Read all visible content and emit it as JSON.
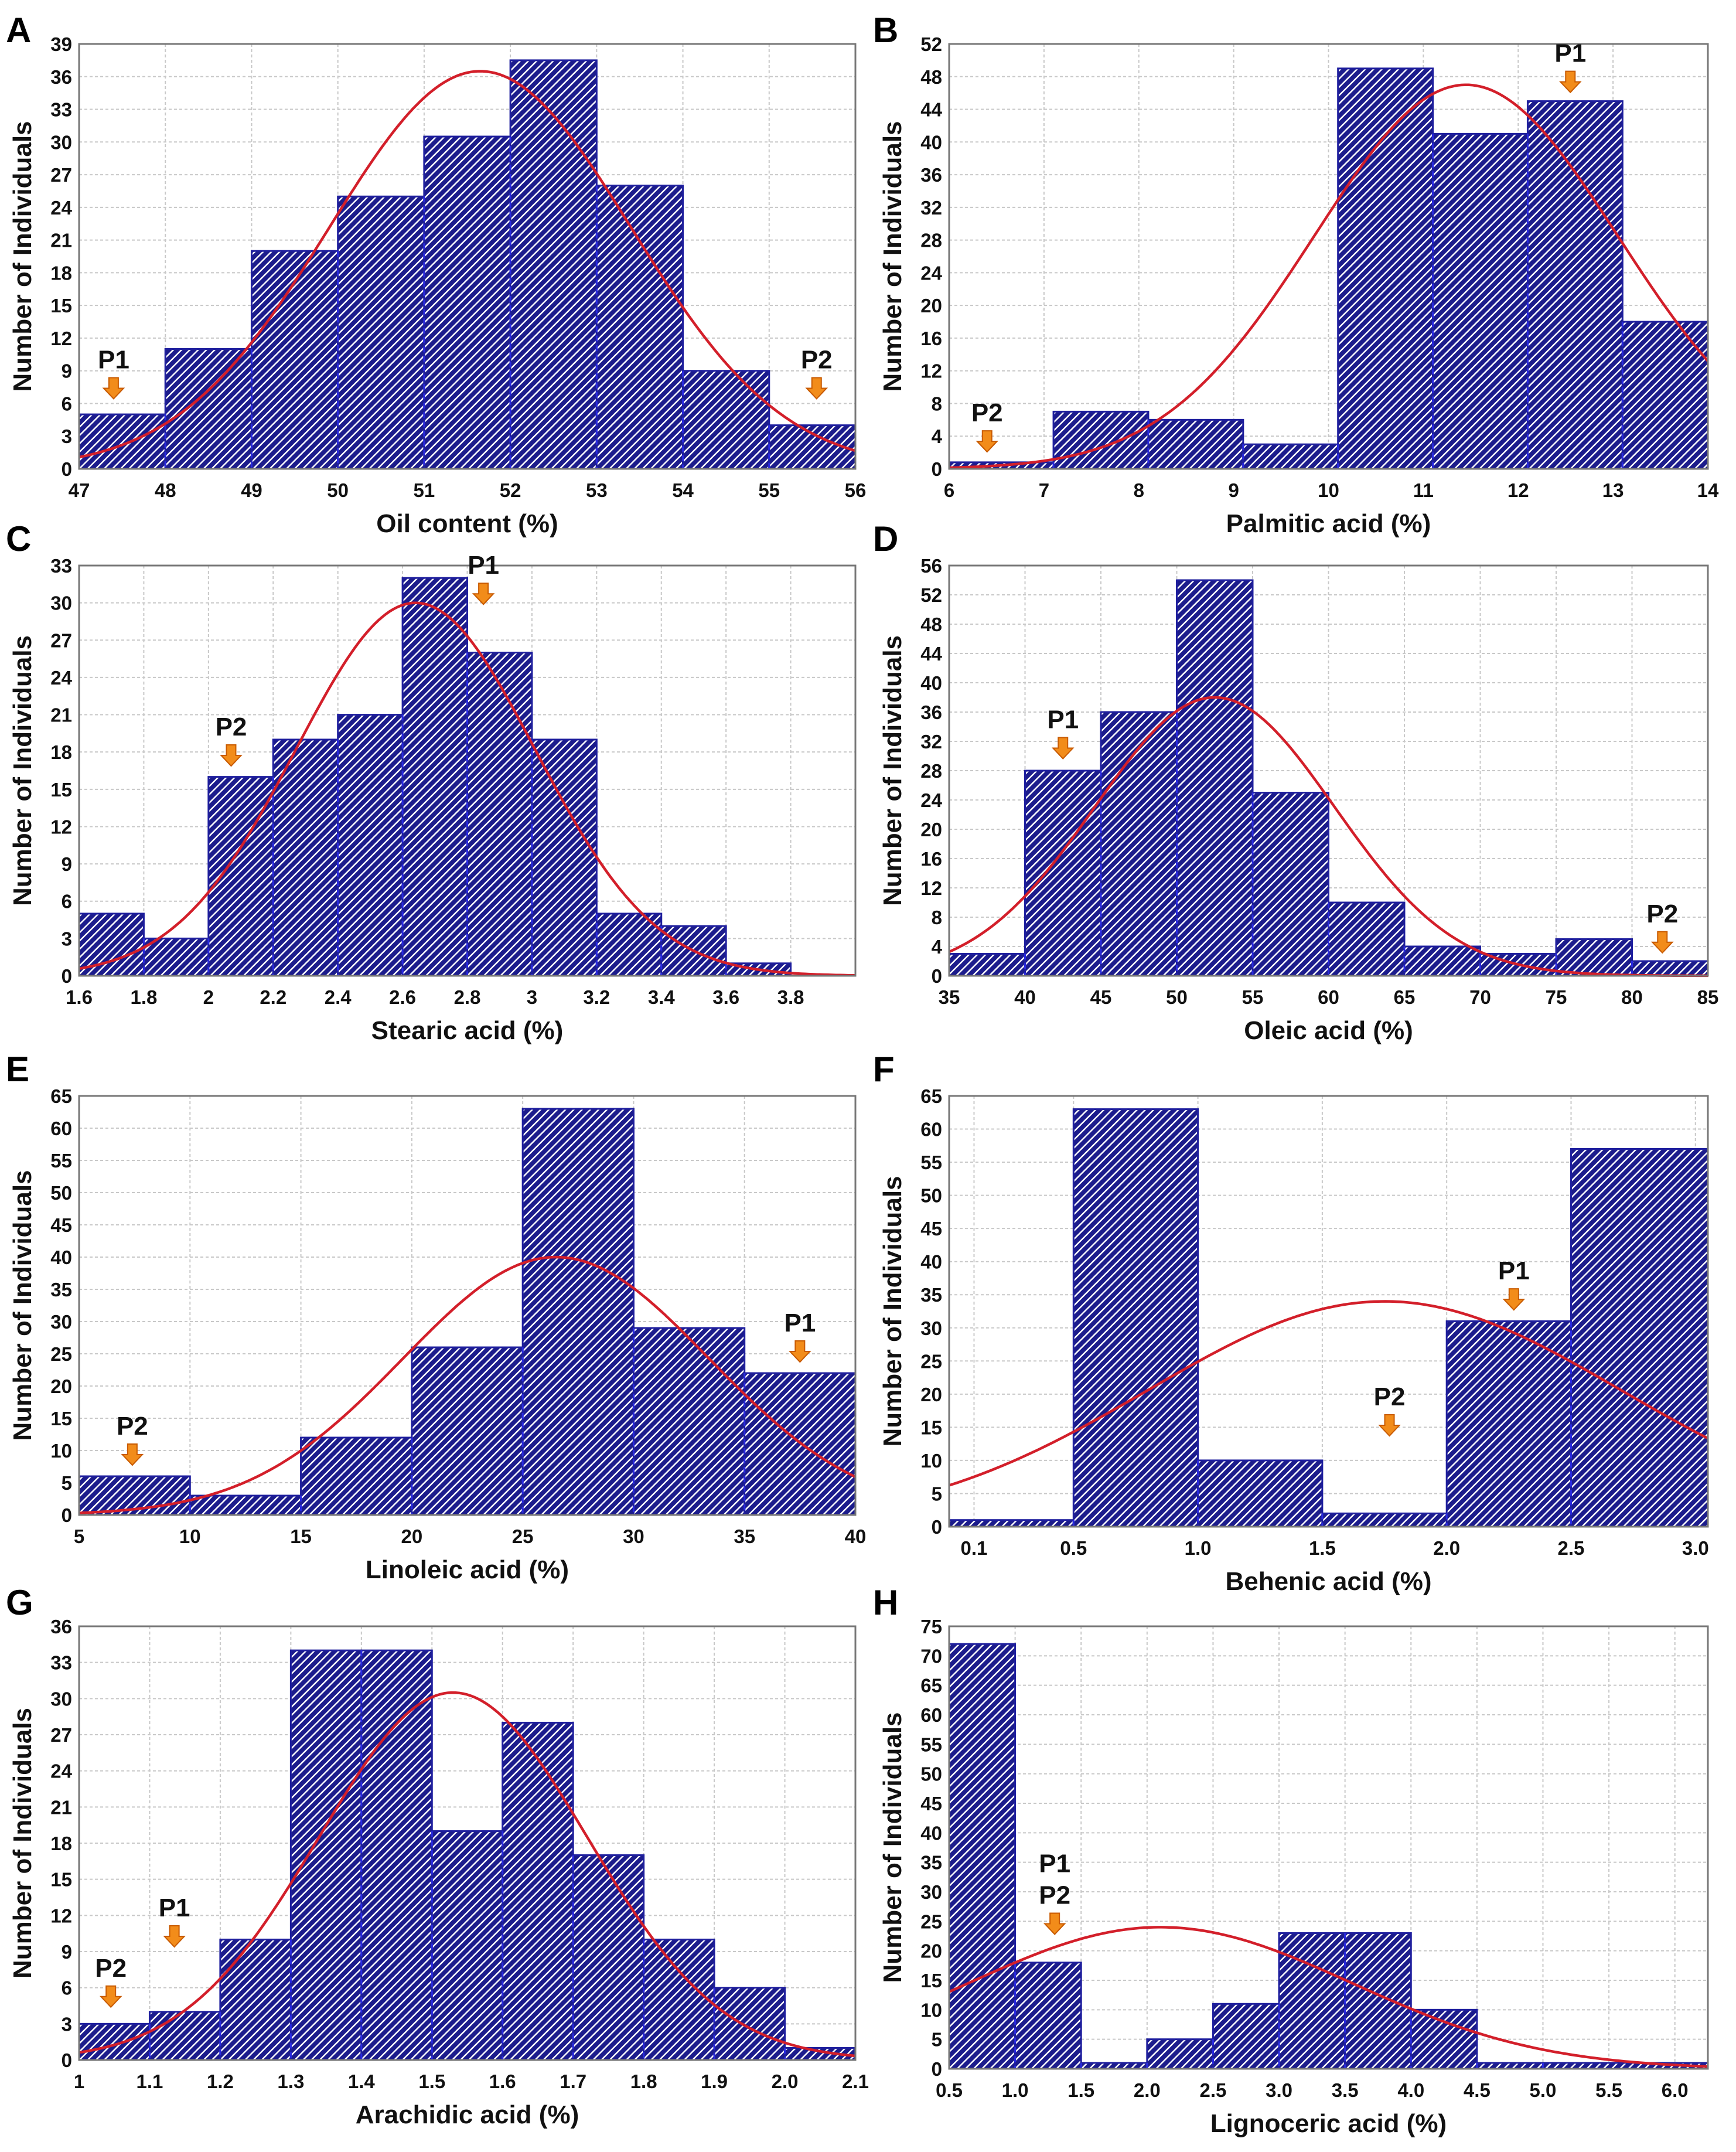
{
  "colors": {
    "bar_fill": "#1c1c8c",
    "hatch_light": "#ffffff",
    "curve": "#d31f2a",
    "arrow": "#f28c1a",
    "arrow_dark": "#c85a00",
    "grid": "#c8c8c8"
  },
  "ylabel": "Number of Individuals",
  "chart_data": [
    {
      "panel": "A",
      "type": "bar",
      "xlabel": "Oil content (%)",
      "xlim": [
        47,
        56
      ],
      "ylim": [
        0,
        39
      ],
      "xticks": [
        47,
        48,
        49,
        50,
        51,
        52,
        53,
        54,
        55,
        56
      ],
      "xtick_labels": [
        "47",
        "48",
        "49",
        "50",
        "51",
        "52",
        "53",
        "54",
        "55",
        "56"
      ],
      "yticks": [
        0,
        3,
        6,
        9,
        12,
        15,
        18,
        21,
        24,
        27,
        30,
        33,
        36,
        39
      ],
      "bins": [
        [
          47,
          48,
          5
        ],
        [
          48,
          49,
          11
        ],
        [
          49,
          50,
          20
        ],
        [
          50,
          51,
          25
        ],
        [
          51,
          52,
          30.5
        ],
        [
          52,
          53,
          37.5
        ],
        [
          53,
          54,
          26
        ],
        [
          54,
          55,
          9
        ],
        [
          55,
          56,
          4
        ]
      ],
      "curve": {
        "mean": 51.65,
        "sd": 1.75,
        "peak": 36.5
      },
      "markers": [
        {
          "label": "P1",
          "x": 47.4,
          "y": 6
        },
        {
          "label": "P2",
          "x": 55.55,
          "y": 6
        }
      ]
    },
    {
      "panel": "B",
      "type": "bar",
      "xlabel": "Palmitic acid (%)",
      "xlim": [
        6,
        14
      ],
      "ylim": [
        0,
        52
      ],
      "xticks": [
        6,
        7,
        8,
        9,
        10,
        11,
        12,
        13,
        14
      ],
      "xtick_labels": [
        "6",
        "7",
        "8",
        "9",
        "10",
        "11",
        "12",
        "13",
        "14"
      ],
      "yticks": [
        0,
        4,
        8,
        12,
        16,
        20,
        24,
        28,
        32,
        36,
        40,
        44,
        48,
        52
      ],
      "bins": [
        [
          6,
          7.1,
          0.8
        ],
        [
          7.1,
          8.1,
          7
        ],
        [
          8.1,
          9.1,
          6
        ],
        [
          9.1,
          10.1,
          3
        ],
        [
          10.1,
          11.1,
          49
        ],
        [
          11.1,
          12.1,
          41
        ],
        [
          12.1,
          13.1,
          45
        ],
        [
          13.1,
          14,
          18
        ]
      ],
      "curve": {
        "mean": 11.45,
        "sd": 1.6,
        "peak": 47
      },
      "markers": [
        {
          "label": "P2",
          "x": 6.4,
          "y": 1.5
        },
        {
          "label": "P1",
          "x": 12.55,
          "y": 45.5
        }
      ]
    },
    {
      "panel": "C",
      "type": "bar",
      "xlabel": "Stearic acid (%)",
      "xlim": [
        1.6,
        4.0
      ],
      "ylim": [
        0,
        33
      ],
      "xticks": [
        1.6,
        1.8,
        2.0,
        2.2,
        2.4,
        2.6,
        2.8,
        3.0,
        3.2,
        3.4,
        3.6,
        3.8
      ],
      "xtick_labels": [
        "1.6",
        "1.8",
        "2",
        "2.2",
        "2.4",
        "2.6",
        "2.8",
        "3",
        "3.2",
        "3.4",
        "3.6",
        "3.8"
      ],
      "yticks": [
        0,
        3,
        6,
        9,
        12,
        15,
        18,
        21,
        24,
        27,
        30,
        33
      ],
      "bins": [
        [
          1.6,
          1.8,
          5
        ],
        [
          1.8,
          2.0,
          3
        ],
        [
          2.0,
          2.2,
          16
        ],
        [
          2.2,
          2.4,
          19
        ],
        [
          2.4,
          2.6,
          21
        ],
        [
          2.6,
          2.8,
          32
        ],
        [
          2.8,
          3.0,
          26
        ],
        [
          3.0,
          3.2,
          19
        ],
        [
          3.2,
          3.4,
          5
        ],
        [
          3.4,
          3.6,
          4
        ],
        [
          3.6,
          3.8,
          1
        ]
      ],
      "curve": {
        "mean": 2.64,
        "sd": 0.37,
        "peak": 30
      },
      "markers": [
        {
          "label": "P2",
          "x": 2.07,
          "y": 16.5
        },
        {
          "label": "P1",
          "x": 2.85,
          "y": 29.5
        }
      ]
    },
    {
      "panel": "D",
      "type": "bar",
      "xlabel": "Oleic acid (%)",
      "xlim": [
        35,
        85
      ],
      "ylim": [
        0,
        56
      ],
      "xticks": [
        35,
        40,
        45,
        50,
        55,
        60,
        65,
        70,
        75,
        80,
        85
      ],
      "xtick_labels": [
        "35",
        "40",
        "45",
        "50",
        "55",
        "60",
        "65",
        "70",
        "75",
        "80",
        "85"
      ],
      "yticks": [
        0,
        4,
        8,
        12,
        16,
        20,
        24,
        28,
        32,
        36,
        40,
        44,
        48,
        52,
        56
      ],
      "bins": [
        [
          35,
          40,
          3
        ],
        [
          40,
          45,
          28
        ],
        [
          45,
          50,
          36
        ],
        [
          50,
          55,
          54
        ],
        [
          55,
          60,
          25
        ],
        [
          60,
          65,
          10
        ],
        [
          65,
          70,
          4
        ],
        [
          70,
          75,
          3
        ],
        [
          75,
          80,
          5
        ],
        [
          80,
          85,
          2
        ]
      ],
      "curve": {
        "mean": 52.5,
        "sd": 7.9,
        "peak": 38
      },
      "markers": [
        {
          "label": "P1",
          "x": 42.5,
          "y": 29
        },
        {
          "label": "P2",
          "x": 82,
          "y": 2.5
        }
      ]
    },
    {
      "panel": "E",
      "type": "bar",
      "xlabel": "Linoleic acid (%)",
      "xlim": [
        5,
        40
      ],
      "ylim": [
        0,
        65
      ],
      "xticks": [
        5,
        10,
        15,
        20,
        25,
        30,
        35,
        40
      ],
      "xtick_labels": [
        "5",
        "10",
        "15",
        "20",
        "25",
        "30",
        "35",
        "40"
      ],
      "yticks": [
        0,
        5,
        10,
        15,
        20,
        25,
        30,
        35,
        40,
        45,
        50,
        55,
        60,
        65
      ],
      "bins": [
        [
          5,
          10,
          6
        ],
        [
          10,
          15,
          3
        ],
        [
          15,
          20,
          12
        ],
        [
          20,
          25,
          26
        ],
        [
          25,
          30,
          63
        ],
        [
          30,
          35,
          29
        ],
        [
          35,
          40,
          22
        ]
      ],
      "curve": {
        "mean": 26.5,
        "sd": 6.9,
        "peak": 40
      },
      "markers": [
        {
          "label": "P2",
          "x": 7.4,
          "y": 7
        },
        {
          "label": "P1",
          "x": 37.5,
          "y": 23
        }
      ]
    },
    {
      "panel": "F",
      "type": "bar",
      "xlabel": "Behenic acid (%)",
      "xlim": [
        0.0,
        3.05
      ],
      "ylim": [
        0,
        65
      ],
      "xticks": [
        0.1,
        0.5,
        1.0,
        1.5,
        2.0,
        2.5,
        3.0
      ],
      "xtick_labels": [
        "0.1",
        "0.5",
        "1.0",
        "1.5",
        "2.0",
        "2.5",
        "3.0"
      ],
      "yticks": [
        0,
        5,
        10,
        15,
        20,
        25,
        30,
        35,
        40,
        45,
        50,
        55,
        60,
        65
      ],
      "bins": [
        [
          0.0,
          0.5,
          1
        ],
        [
          0.5,
          1.0,
          63
        ],
        [
          1.0,
          1.5,
          10
        ],
        [
          1.5,
          2.0,
          2
        ],
        [
          2.0,
          2.5,
          31
        ],
        [
          2.5,
          3.05,
          57
        ]
      ],
      "curve": {
        "mean": 1.75,
        "sd": 0.95,
        "peak": 34
      },
      "markers": [
        {
          "label": "P2",
          "x": 1.77,
          "y": 13
        },
        {
          "label": "P1",
          "x": 2.27,
          "y": 32
        }
      ]
    },
    {
      "panel": "G",
      "type": "bar",
      "xlabel": "Arachidic acid (%)",
      "xlim": [
        1.0,
        2.1
      ],
      "ylim": [
        0,
        36
      ],
      "xticks": [
        1.0,
        1.1,
        1.2,
        1.3,
        1.4,
        1.5,
        1.6,
        1.7,
        1.8,
        1.9,
        2.0,
        2.1
      ],
      "xtick_labels": [
        "1",
        "1.1",
        "1.2",
        "1.3",
        "1.4",
        "1.5",
        "1.6",
        "1.7",
        "1.8",
        "1.9",
        "2.0",
        "2.1"
      ],
      "yticks": [
        0,
        3,
        6,
        9,
        12,
        15,
        18,
        21,
        24,
        27,
        30,
        33,
        36
      ],
      "bins": [
        [
          1.0,
          1.1,
          3
        ],
        [
          1.1,
          1.2,
          4
        ],
        [
          1.2,
          1.3,
          10
        ],
        [
          1.3,
          1.4,
          34
        ],
        [
          1.4,
          1.5,
          34
        ],
        [
          1.5,
          1.6,
          19
        ],
        [
          1.6,
          1.7,
          28
        ],
        [
          1.7,
          1.8,
          17
        ],
        [
          1.8,
          1.9,
          10
        ],
        [
          1.9,
          2.0,
          6
        ],
        [
          2.0,
          2.1,
          1
        ]
      ],
      "curve": {
        "mean": 1.53,
        "sd": 0.19,
        "peak": 30.5
      },
      "markers": [
        {
          "label": "P2",
          "x": 1.045,
          "y": 4
        },
        {
          "label": "P1",
          "x": 1.135,
          "y": 9
        }
      ]
    },
    {
      "panel": "H",
      "type": "bar",
      "xlabel": "Lignoceric acid (%)",
      "xlim": [
        0.5,
        6.25
      ],
      "ylim": [
        0,
        75
      ],
      "xticks": [
        0.5,
        1.0,
        1.5,
        2.0,
        2.5,
        3.0,
        3.5,
        4.0,
        4.5,
        5.0,
        5.5,
        6.0
      ],
      "xtick_labels": [
        "0.5",
        "1.0",
        "1.5",
        "2.0",
        "2.5",
        "3.0",
        "3.5",
        "4.0",
        "4.5",
        "5.0",
        "5.5",
        "6.0"
      ],
      "yticks": [
        0,
        5,
        10,
        15,
        20,
        25,
        30,
        35,
        40,
        45,
        50,
        55,
        60,
        65,
        70,
        75
      ],
      "bins": [
        [
          0.5,
          1.0,
          72
        ],
        [
          1.0,
          1.5,
          18
        ],
        [
          1.5,
          2.0,
          1
        ],
        [
          2.0,
          2.5,
          5
        ],
        [
          2.5,
          3.0,
          11
        ],
        [
          3.0,
          3.5,
          23
        ],
        [
          3.5,
          4.0,
          23
        ],
        [
          4.0,
          4.5,
          10
        ],
        [
          4.5,
          5.0,
          1
        ],
        [
          5.0,
          6.25,
          1
        ]
      ],
      "curve": {
        "mean": 2.1,
        "sd": 1.45,
        "peak": 24
      },
      "markers": [
        {
          "label": "P1\nP2",
          "x": 1.3,
          "y": 22
        }
      ]
    }
  ]
}
